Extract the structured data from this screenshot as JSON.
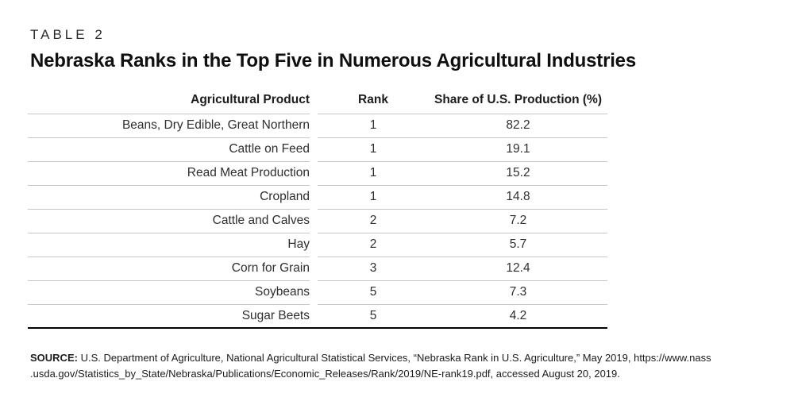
{
  "page": {
    "eyebrow": "TABLE 2",
    "title": "Nebraska Ranks in the Top Five in Numerous Agricultural Industries"
  },
  "table": {
    "columns": {
      "product": "Agricultural Product",
      "rank": "Rank",
      "share": "Share of U.S. Production (%)"
    },
    "rows": [
      {
        "product": "Beans, Dry Edible, Great Northern",
        "rank": "1",
        "share": "82.2"
      },
      {
        "product": "Cattle on Feed",
        "rank": "1",
        "share": "19.1"
      },
      {
        "product": "Read Meat Production",
        "rank": "1",
        "share": "15.2"
      },
      {
        "product": "Cropland",
        "rank": "1",
        "share": "14.8"
      },
      {
        "product": "Cattle and Calves",
        "rank": "2",
        "share": "7.2"
      },
      {
        "product": "Hay",
        "rank": "2",
        "share": "5.7"
      },
      {
        "product": "Corn for Grain",
        "rank": "3",
        "share": "12.4"
      },
      {
        "product": "Soybeans",
        "rank": "5",
        "share": "7.3"
      },
      {
        "product": "Sugar Beets",
        "rank": "5",
        "share": "4.2"
      }
    ]
  },
  "source": {
    "label": "SOURCE:",
    "line1": "U.S. Department of Agriculture, National Agricultural Statistical Services, “Nebraska Rank in U.S. Agriculture,” May 2019, https://www.nass",
    "line2": ".usda.gov/Statistics_by_State/Nebraska/Publications/Economic_Releases/Rank/2019/NE-rank19.pdf, accessed August 20, 2019."
  },
  "colors": {
    "text": "#231f20",
    "rule_light": "#c6c6c6",
    "rule_heavy": "#000000",
    "background": "#ffffff"
  }
}
